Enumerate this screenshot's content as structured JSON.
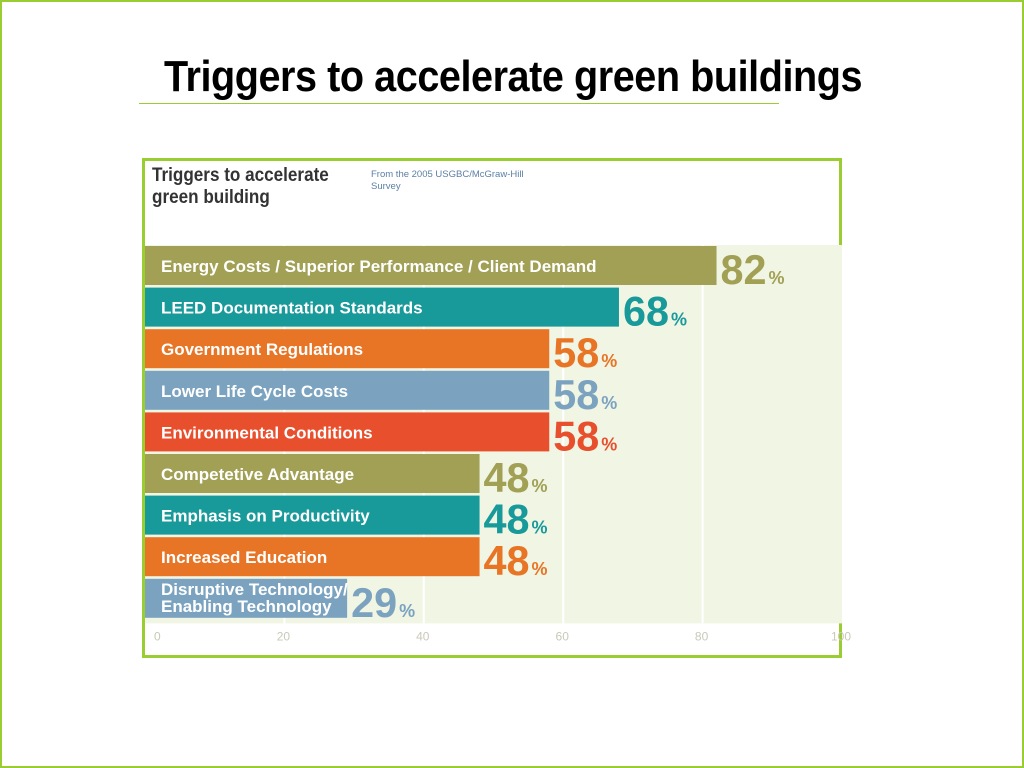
{
  "slide": {
    "title": "Triggers to accelerate green buildings",
    "border_color": "#9acd32"
  },
  "chart_data": {
    "type": "bar",
    "orientation": "horizontal",
    "title": "Triggers to accelerate green building",
    "subtitle": "From the 2005 USGBC/McGraw-Hill Survey",
    "categories": [
      "Energy Costs / Superior Performance / Client Demand",
      "LEED Documentation Standards",
      "Government Regulations",
      "Lower Life Cycle Costs",
      "Environmental Conditions",
      "Competetive Advantage",
      "Emphasis on Productivity",
      "Increased Education",
      "Disruptive Technology/ Enabling Technology"
    ],
    "values": [
      82,
      68,
      58,
      58,
      58,
      48,
      48,
      48,
      29
    ],
    "value_suffix": "%",
    "colors": [
      "#a1a055",
      "#18999a",
      "#e87526",
      "#7ba3c0",
      "#e84f2c",
      "#a1a055",
      "#18999a",
      "#e87526",
      "#7ba3c0"
    ],
    "xlim": [
      0,
      100
    ],
    "xticks": [
      0,
      20,
      40,
      60,
      80,
      100
    ],
    "grid": true,
    "background": "#f1f5e4"
  }
}
